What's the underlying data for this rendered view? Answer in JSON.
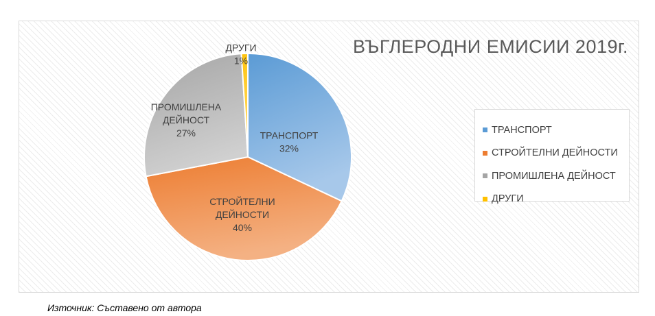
{
  "chart_data": {
    "type": "pie",
    "title": "ВЪГЛЕРОДНИ ЕМИСИИ 2019г.",
    "legend_position": "right",
    "slices": [
      {
        "name": "ТРАНСПОРТ",
        "value": 32,
        "label_lines": [
          "ТРАНСПОРТ"
        ],
        "percent_label": "32%",
        "color": "#5b9bd5",
        "color_light": "#a7c8ea"
      },
      {
        "name": "СТРОЙТЕЛНИ ДЕЙНОСТИ",
        "value": 40,
        "label_lines": [
          "СТРОЙТЕЛНИ",
          "ДЕЙНОСТИ"
        ],
        "percent_label": "40%",
        "color": "#ed7d31",
        "color_light": "#f4b183"
      },
      {
        "name": "ПРОМИШЛЕНА ДЕЙНОСТ",
        "value": 27,
        "label_lines": [
          "ПРОМИШЛЕНА",
          "ДЕЙНОСТ"
        ],
        "percent_label": "27%",
        "color": "#a5a5a5",
        "color_light": "#d0d0d0"
      },
      {
        "name": "ДРУГИ",
        "value": 1,
        "label_lines": [
          "ДРУГИ"
        ],
        "percent_label": "1%",
        "color": "#ffc000",
        "color_light": "#ffdc6e"
      }
    ]
  },
  "source_note": "Източник: Съставено от автора"
}
